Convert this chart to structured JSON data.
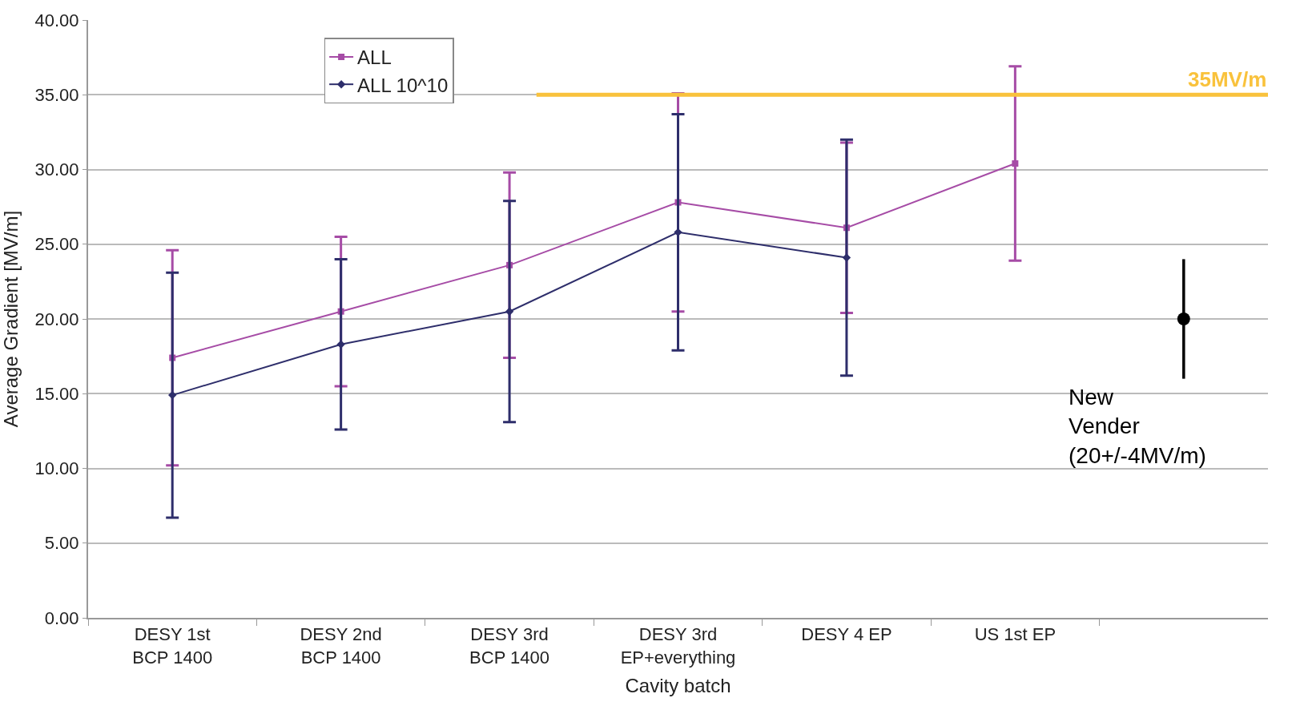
{
  "chart_data": {
    "type": "line",
    "xlabel": "Cavity batch",
    "ylabel": "Average Gradient [MV/m]",
    "categories": [
      "DESY 1st BCP 1400",
      "DESY 2nd BCP 1400",
      "DESY 3rd BCP 1400",
      "DESY 3rd EP+everything",
      "DESY 4 EP",
      "US 1st EP",
      null
    ],
    "series": [
      {
        "name": "ALL",
        "color": "#a64ca6",
        "marker": "square",
        "values": [
          17.4,
          20.5,
          23.6,
          27.8,
          26.1,
          30.4,
          null
        ],
        "errors": [
          7.2,
          5.0,
          6.2,
          7.3,
          5.7,
          6.5,
          null
        ]
      },
      {
        "name": "ALL 10^10",
        "color": "#2e2e6b",
        "marker": "diamond",
        "values": [
          14.9,
          18.3,
          20.5,
          25.8,
          24.1,
          null,
          null
        ],
        "errors": [
          8.2,
          5.7,
          7.4,
          7.9,
          7.9,
          null,
          null
        ]
      },
      {
        "type": "scatter",
        "color": "#000000",
        "marker": "circle",
        "values": [
          null,
          null,
          null,
          null,
          null,
          null,
          20
        ],
        "errors": [
          null,
          null,
          null,
          null,
          null,
          null,
          4
        ]
      }
    ],
    "ylim": [
      0,
      40
    ],
    "yticks": [
      {
        "value": 0,
        "label": "0.00"
      },
      {
        "value": 5,
        "label": "5.00"
      },
      {
        "value": 10,
        "label": "10.00"
      },
      {
        "value": 15,
        "label": "15.00"
      },
      {
        "value": 20,
        "label": "20.00"
      },
      {
        "value": 25,
        "label": "25.00"
      },
      {
        "value": 30,
        "label": "30.00"
      },
      {
        "value": 35,
        "label": "35.00"
      },
      {
        "value": 40,
        "label": "40.00"
      }
    ],
    "ref_lines": [
      {
        "axis": "y",
        "value": 35,
        "label": "35MV/m",
        "color": "#f9c23c"
      }
    ],
    "annotations": [
      "New Vender (20+/-4MV/m)"
    ],
    "grid": "y",
    "legend": "top left"
  }
}
